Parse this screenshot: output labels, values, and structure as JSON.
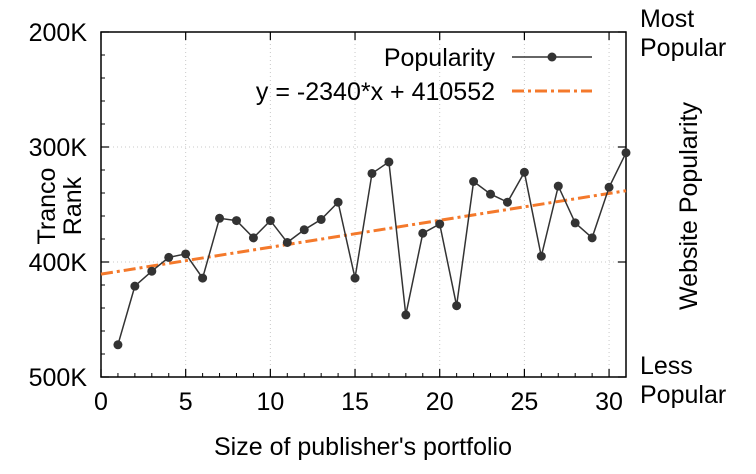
{
  "chart_data": {
    "type": "line",
    "xlabel": "Size of publisher's portfolio",
    "ylabel_lines": [
      "Tranco",
      "Rank"
    ],
    "right_label": "Website Popularity",
    "right_top_lines": [
      "Most",
      "Popular"
    ],
    "right_bottom_lines": [
      "Less",
      "Popular"
    ],
    "xlim": [
      0,
      31
    ],
    "ylim": [
      500000,
      200000
    ],
    "y_inverted": true,
    "x_ticks": [
      0,
      5,
      10,
      15,
      20,
      25,
      30
    ],
    "y_ticks": [
      200000,
      300000,
      400000,
      500000
    ],
    "y_tick_labels": [
      "200K",
      "300K",
      "400K",
      "500K"
    ],
    "grid": true,
    "legend_position": "top-right",
    "series": [
      {
        "name": "Popularity",
        "color": "#333333",
        "marker": "circle",
        "x": [
          1,
          2,
          3,
          4,
          5,
          6,
          7,
          8,
          9,
          10,
          11,
          12,
          13,
          14,
          15,
          16,
          17,
          18,
          19,
          20,
          21,
          22,
          23,
          24,
          25,
          26,
          27,
          28,
          29,
          30,
          31
        ],
        "y": [
          472000,
          421000,
          408000,
          396000,
          393000,
          414000,
          362000,
          364000,
          379000,
          364000,
          383000,
          372000,
          363000,
          348000,
          414000,
          323000,
          313000,
          446000,
          375000,
          367000,
          438000,
          330000,
          341000,
          348000,
          322000,
          395000,
          334000,
          366000,
          379000,
          335000,
          305000
        ]
      }
    ],
    "fit": {
      "name": "y = -2340*x + 410552",
      "slope": -2340,
      "intercept": 410552,
      "color": "#f4792b",
      "style": "dash-dot"
    }
  }
}
